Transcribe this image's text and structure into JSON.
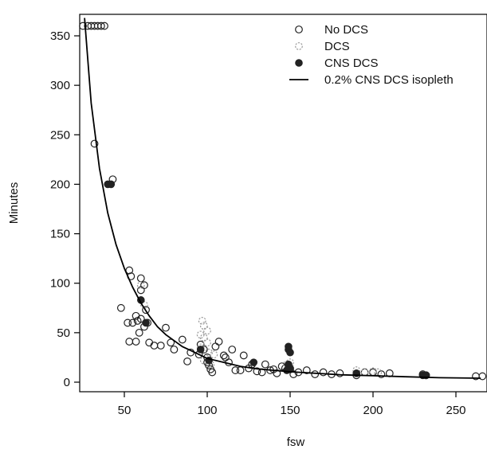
{
  "chart_data": {
    "type": "scatter",
    "xlabel": "fsw",
    "ylabel": "Minutes",
    "xlim": [
      20,
      270
    ],
    "ylim": [
      -8,
      375
    ],
    "x_ticks": [
      50,
      100,
      150,
      200,
      250
    ],
    "y_ticks": [
      0,
      50,
      100,
      150,
      200,
      250,
      300,
      350
    ],
    "grid": false,
    "legend_position": "top-right",
    "series": [
      {
        "name": "No DCS",
        "marker": "open-circle",
        "color": "#222222",
        "points": [
          [
            25,
            360
          ],
          [
            28,
            360
          ],
          [
            30,
            360
          ],
          [
            32,
            360
          ],
          [
            34,
            360
          ],
          [
            36,
            360
          ],
          [
            38,
            360
          ],
          [
            32,
            241
          ],
          [
            43,
            205
          ],
          [
            53,
            113
          ],
          [
            54,
            107
          ],
          [
            60,
            105
          ],
          [
            62,
            98
          ],
          [
            60,
            93
          ],
          [
            48,
            75
          ],
          [
            57,
            67
          ],
          [
            60,
            64
          ],
          [
            63,
            73
          ],
          [
            64,
            60
          ],
          [
            62,
            56
          ],
          [
            52,
            60
          ],
          [
            55,
            60
          ],
          [
            58,
            62
          ],
          [
            59,
            50
          ],
          [
            53,
            41
          ],
          [
            57,
            41
          ],
          [
            65,
            40
          ],
          [
            68,
            37
          ],
          [
            72,
            37
          ],
          [
            75,
            55
          ],
          [
            78,
            40
          ],
          [
            80,
            33
          ],
          [
            85,
            43
          ],
          [
            88,
            21
          ],
          [
            90,
            30
          ],
          [
            95,
            28
          ],
          [
            96,
            38
          ],
          [
            98,
            33
          ],
          [
            100,
            25
          ],
          [
            100,
            20
          ],
          [
            101,
            17
          ],
          [
            102,
            13
          ],
          [
            103,
            10
          ],
          [
            105,
            36
          ],
          [
            107,
            41
          ],
          [
            110,
            27
          ],
          [
            111,
            25
          ],
          [
            113,
            20
          ],
          [
            115,
            33
          ],
          [
            117,
            12
          ],
          [
            120,
            12
          ],
          [
            122,
            27
          ],
          [
            125,
            14
          ],
          [
            127,
            18
          ],
          [
            130,
            11
          ],
          [
            133,
            10
          ],
          [
            135,
            18
          ],
          [
            138,
            12
          ],
          [
            140,
            13
          ],
          [
            142,
            9
          ],
          [
            145,
            16
          ],
          [
            147,
            14
          ],
          [
            150,
            13
          ],
          [
            152,
            8
          ],
          [
            155,
            10
          ],
          [
            160,
            12
          ],
          [
            165,
            8
          ],
          [
            170,
            10
          ],
          [
            175,
            8
          ],
          [
            180,
            9
          ],
          [
            190,
            7
          ],
          [
            195,
            10
          ],
          [
            200,
            10
          ],
          [
            205,
            8
          ],
          [
            210,
            9
          ],
          [
            230,
            8
          ],
          [
            232,
            7
          ],
          [
            262,
            6
          ],
          [
            266,
            6
          ]
        ]
      },
      {
        "name": "DCS",
        "marker": "dashed-circle",
        "color": "#9a9a9a",
        "points": [
          [
            60,
            98
          ],
          [
            62,
            78
          ],
          [
            97,
            62
          ],
          [
            98,
            57
          ],
          [
            100,
            52
          ],
          [
            96,
            48
          ],
          [
            98,
            45
          ],
          [
            100,
            40
          ],
          [
            96,
            35
          ],
          [
            101,
            30
          ],
          [
            104,
            28
          ],
          [
            98,
            22
          ],
          [
            102,
            18
          ],
          [
            150,
            20
          ],
          [
            150,
            15
          ],
          [
            148,
            18
          ],
          [
            190,
            12
          ],
          [
            195,
            10
          ],
          [
            200,
            11
          ],
          [
            203,
            10
          ]
        ]
      },
      {
        "name": "CNS DCS",
        "marker": "filled-circle",
        "color": "#222222",
        "points": [
          [
            40,
            200
          ],
          [
            42,
            200
          ],
          [
            60,
            83
          ],
          [
            63,
            60
          ],
          [
            96,
            33
          ],
          [
            101,
            22
          ],
          [
            128,
            20
          ],
          [
            149,
            36
          ],
          [
            149,
            33
          ],
          [
            150,
            30
          ],
          [
            149,
            18
          ],
          [
            150,
            14
          ],
          [
            148,
            12
          ],
          [
            190,
            9
          ],
          [
            230,
            7
          ],
          [
            232,
            7
          ]
        ]
      }
    ],
    "isopleth": {
      "name": "0.2% CNS DCS isopleth",
      "x": [
        26,
        30,
        35,
        40,
        45,
        50,
        55,
        60,
        65,
        70,
        75,
        80,
        85,
        90,
        95,
        100,
        110,
        120,
        130,
        140,
        150,
        160,
        170,
        180,
        190,
        200,
        220,
        240,
        265
      ],
      "y": [
        368,
        282,
        216,
        171,
        139,
        115,
        96,
        80,
        67,
        56,
        48,
        42,
        36,
        32,
        28,
        24,
        20,
        16,
        13.5,
        12,
        10.5,
        9.5,
        8.5,
        7.5,
        7,
        6.5,
        5.5,
        4.5,
        4
      ]
    }
  }
}
